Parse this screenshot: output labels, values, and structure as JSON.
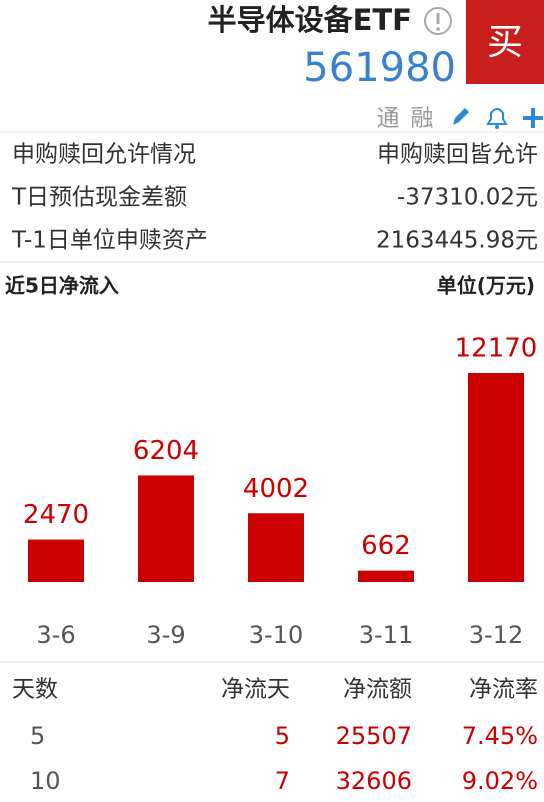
{
  "header": {
    "title": "半导体设备ETF",
    "code": "561980",
    "buy": "买",
    "tags": [
      "通",
      "融"
    ]
  },
  "info": [
    [
      "申购赎回允许情况",
      "申购赎回皆允许"
    ],
    [
      "T日预估现金差额",
      "-37310.02元"
    ],
    [
      "T-1日单位申赎资产",
      "2163445.98元"
    ]
  ],
  "chart_data": {
    "type": "bar",
    "title": "近5日净流入",
    "unit": "单位(万元)",
    "categories": [
      "3-6",
      "3-9",
      "3-10",
      "3-11",
      "3-12"
    ],
    "values": [
      2470,
      6204,
      4002,
      662,
      12170
    ],
    "color": "#cc0000"
  },
  "table": {
    "header": [
      "天数",
      "净流天",
      "净流额",
      "净流率"
    ],
    "rows": [
      [
        "5",
        "5",
        "25507",
        "7.45%"
      ],
      [
        "10",
        "7",
        "32606",
        "9.02%"
      ]
    ]
  }
}
